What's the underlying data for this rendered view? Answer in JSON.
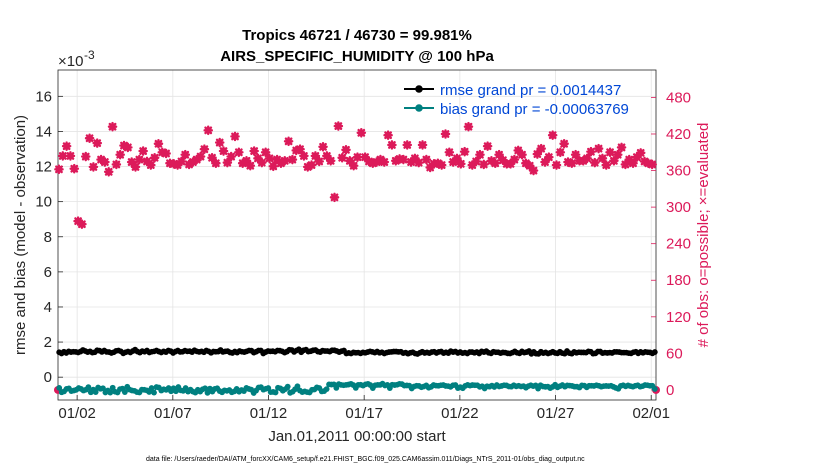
{
  "colors": {
    "rmse": "#000000",
    "bias": "#008080",
    "obs": "#dc1a5a",
    "legend_text": "#0047d6",
    "grid": "#e4e4e4"
  },
  "footer": "data file: /Users/raeder/DAI/ATM_forcXX/CAM6_setup/f.e21.FHIST_BGC.f09_025.CAM6assim.011/Diags_NTrS_2011-01/obs_diag_output.nc",
  "chart_data": {
    "type": "line",
    "title": [
      "Tropics 46721 / 46730 = 99.981%",
      "AIRS_SPECIFIC_HUMIDITY @ 100 hPa"
    ],
    "xlabel": "Jan.01,2011 00:00:00 start",
    "ylabel_left": "rmse and bias (model - observation)",
    "ylabel_right": "# of obs: o=possible; ×=evaluated",
    "exponent_label": "×10",
    "exponent_power": "-3",
    "x_range_days": [
      0,
      31.25
    ],
    "y_left_range": [
      -1.3,
      17.5
    ],
    "y_left_ticks": [
      0,
      2,
      4,
      6,
      8,
      10,
      12,
      14,
      16
    ],
    "y_left_tick_labels": [
      "0",
      "2",
      "4",
      "6",
      "8",
      "10",
      "12",
      "14",
      "16"
    ],
    "y_right_range": [
      -16.5,
      525
    ],
    "y_right_ticks": [
      0,
      60,
      120,
      180,
      240,
      300,
      360,
      420,
      480
    ],
    "y_right_tick_labels": [
      "0",
      "60",
      "120",
      "180",
      "240",
      "300",
      "360",
      "420",
      "480"
    ],
    "x_ticks_days": [
      1,
      6,
      11,
      16,
      21,
      26,
      31
    ],
    "x_tick_labels": [
      "01/02",
      "01/07",
      "01/12",
      "01/17",
      "01/22",
      "01/27",
      "02/01"
    ],
    "legend": [
      "rmse grand pr = 0.0014437",
      "bias grand pr = -0.00063769"
    ],
    "rmse_e3": [
      1.42,
      1.35,
      1.45,
      1.38,
      1.47,
      1.43,
      1.45,
      1.44,
      1.41,
      1.46,
      1.55,
      1.49,
      1.43,
      1.47,
      1.4,
      1.42,
      1.53,
      1.51,
      1.44,
      1.52,
      1.44,
      1.43,
      1.38,
      1.42,
      1.5,
      1.52,
      1.47,
      1.36,
      1.42,
      1.46,
      1.41,
      1.49,
      1.57,
      1.46,
      1.4,
      1.48,
      1.45,
      1.52,
      1.41,
      1.45,
      1.47,
      1.52,
      1.46,
      1.41,
      1.47,
      1.43,
      1.52,
      1.48,
      1.38,
      1.46,
      1.52,
      1.44,
      1.45,
      1.51,
      1.47,
      1.48,
      1.43,
      1.53,
      1.47,
      1.44,
      1.47,
      1.42,
      1.52,
      1.47,
      1.39,
      1.46,
      1.45,
      1.46,
      1.55,
      1.44,
      1.47,
      1.48,
      1.41,
      1.38,
      1.46,
      1.4,
      1.49,
      1.45,
      1.43,
      1.47,
      1.52,
      1.51,
      1.4,
      1.45,
      1.52,
      1.52,
      1.35,
      1.43,
      1.49,
      1.47,
      1.48,
      1.45,
      1.52,
      1.51,
      1.47,
      1.4,
      1.46,
      1.56,
      1.55,
      1.44,
      1.52,
      1.59,
      1.42,
      1.53,
      1.57,
      1.46,
      1.48,
      1.53,
      1.55,
      1.46,
      1.43,
      1.51,
      1.49,
      1.49,
      1.46,
      1.53,
      1.53,
      1.49,
      1.43,
      1.48,
      1.52,
      1.35,
      1.38,
      1.35,
      1.41,
      1.39,
      1.4,
      1.36,
      1.41,
      1.39,
      1.43,
      1.47,
      1.44,
      1.4,
      1.46,
      1.39,
      1.42,
      1.35,
      1.4,
      1.43,
      1.44,
      1.46,
      1.46,
      1.44,
      1.45,
      1.37,
      1.4,
      1.34,
      1.39,
      1.42,
      1.35,
      1.32,
      1.39,
      1.45,
      1.38,
      1.41,
      1.37,
      1.43,
      1.45,
      1.38,
      1.44,
      1.46,
      1.37,
      1.42,
      1.37,
      1.48,
      1.43,
      1.46,
      1.38,
      1.43,
      1.37,
      1.4,
      1.35,
      1.43,
      1.43,
      1.39,
      1.43,
      1.35,
      1.47,
      1.43,
      1.48,
      1.39,
      1.36,
      1.45,
      1.42,
      1.42,
      1.37,
      1.41,
      1.4,
      1.36,
      1.35,
      1.4,
      1.47,
      1.39,
      1.36,
      1.47,
      1.4,
      1.43,
      1.49,
      1.33,
      1.44,
      1.34,
      1.33,
      1.45,
      1.37,
      1.41,
      1.35,
      1.39,
      1.45,
      1.38,
      1.36,
      1.45,
      1.37,
      1.34,
      1.49,
      1.37,
      1.34,
      1.44,
      1.39,
      1.42,
      1.41,
      1.41,
      1.4,
      1.47,
      1.45,
      1.34,
      1.36,
      1.46,
      1.46,
      1.37,
      1.4,
      1.38,
      1.4,
      1.38,
      1.44,
      1.44,
      1.43,
      1.4,
      1.4,
      1.4,
      1.37,
      1.36,
      1.42,
      1.45,
      1.36,
      1.44,
      1.39,
      1.44,
      1.42,
      1.41,
      1.36,
      1.43
    ],
    "bias_e3": [
      -0.61,
      -0.86,
      -0.81,
      -0.67,
      -0.64,
      -0.79,
      -0.76,
      -0.72,
      -0.62,
      -0.67,
      -0.76,
      -0.71,
      -0.57,
      -0.86,
      -0.71,
      -0.85,
      -0.59,
      -0.66,
      -0.63,
      -0.87,
      -0.76,
      -0.88,
      -0.6,
      -0.83,
      -0.87,
      -0.68,
      -0.65,
      -0.85,
      -0.55,
      -0.71,
      -0.76,
      -0.78,
      -0.85,
      -0.87,
      -0.71,
      -0.72,
      -0.75,
      -0.84,
      -0.62,
      -0.88,
      -0.56,
      -0.59,
      -0.76,
      -0.69,
      -0.72,
      -0.62,
      -0.8,
      -0.63,
      -0.8,
      -0.56,
      -0.75,
      -0.78,
      -0.62,
      -0.82,
      -0.71,
      -0.82,
      -0.88,
      -0.72,
      -0.82,
      -0.69,
      -0.63,
      -0.89,
      -0.65,
      -0.82,
      -0.67,
      -0.63,
      -0.79,
      -0.86,
      -0.75,
      -0.78,
      -0.73,
      -0.86,
      -0.81,
      -0.67,
      -0.83,
      -0.73,
      -0.79,
      -0.61,
      -0.67,
      -0.71,
      -0.9,
      -0.76,
      -0.59,
      -0.57,
      -0.71,
      -0.66,
      -0.62,
      -0.85,
      -0.84,
      -0.87,
      -0.6,
      -0.64,
      -0.77,
      -0.68,
      -0.54,
      -0.89,
      -0.83,
      -0.69,
      -0.52,
      -0.76,
      -0.85,
      -0.81,
      -0.85,
      -0.87,
      -0.72,
      -0.7,
      -0.58,
      -0.62,
      -0.81,
      -0.79,
      -0.68,
      -0.41,
      -0.42,
      -0.41,
      -0.61,
      -0.4,
      -0.44,
      -0.46,
      -0.44,
      -0.42,
      -0.38,
      -0.45,
      -0.61,
      -0.44,
      -0.43,
      -0.48,
      -0.41,
      -0.38,
      -0.45,
      -0.62,
      -0.46,
      -0.44,
      -0.44,
      -0.37,
      -0.47,
      -0.44,
      -0.62,
      -0.43,
      -0.45,
      -0.43,
      -0.38,
      -0.4,
      -0.48,
      -0.47,
      -0.48,
      -0.64,
      -0.53,
      -0.49,
      -0.5,
      -0.57,
      -0.53,
      -0.47,
      -0.6,
      -0.55,
      -0.45,
      -0.48,
      -0.49,
      -0.46,
      -0.45,
      -0.5,
      -0.51,
      -0.55,
      -0.46,
      -0.45,
      -0.62,
      -0.57,
      -0.63,
      -0.5,
      -0.44,
      -0.48,
      -0.45,
      -0.46,
      -0.46,
      -0.55,
      -0.52,
      -0.64,
      -0.52,
      -0.54,
      -0.48,
      -0.56,
      -0.45,
      -0.53,
      -0.5,
      -0.46,
      -0.47,
      -0.53,
      -0.54,
      -0.46,
      -0.52,
      -0.49,
      -0.53,
      -0.51,
      -0.6,
      -0.51,
      -0.46,
      -0.51,
      -0.47,
      -0.65,
      -0.46,
      -0.53,
      -0.55,
      -0.54,
      -0.62,
      -0.55,
      -0.43,
      -0.58,
      -0.51,
      -0.45,
      -0.54,
      -0.47,
      -0.48,
      -0.5,
      -0.54,
      -0.54,
      -0.59,
      -0.47,
      -0.48,
      -0.58,
      -0.49,
      -0.49,
      -0.5,
      -0.46,
      -0.49,
      -0.54,
      -0.51,
      -0.5,
      -0.51,
      -0.49,
      -0.55,
      -0.61,
      -0.66,
      -0.5,
      -0.46,
      -0.52,
      -0.47,
      -0.51,
      -0.54,
      -0.49,
      -0.46,
      -0.54,
      -0.51,
      -0.45,
      -0.46,
      -0.49,
      -0.49,
      -0.67
    ],
    "obs_possible_ends": [
      0,
      0
    ],
    "obs_evaluated": [
      {
        "day": 0.05,
        "n": 362
      },
      {
        "day": 0.25,
        "n": 384
      },
      {
        "day": 0.45,
        "n": 400
      },
      {
        "day": 0.65,
        "n": 384
      },
      {
        "day": 0.85,
        "n": 363
      },
      {
        "day": 1.05,
        "n": 277
      },
      {
        "day": 1.25,
        "n": 272
      },
      {
        "day": 1.45,
        "n": 383
      },
      {
        "day": 1.65,
        "n": 413
      },
      {
        "day": 1.85,
        "n": 366
      },
      {
        "day": 2.05,
        "n": 405
      },
      {
        "day": 2.25,
        "n": 378
      },
      {
        "day": 2.45,
        "n": 374
      },
      {
        "day": 2.65,
        "n": 358
      },
      {
        "day": 2.85,
        "n": 432
      },
      {
        "day": 3.05,
        "n": 370
      },
      {
        "day": 3.25,
        "n": 386
      },
      {
        "day": 3.45,
        "n": 401
      },
      {
        "day": 3.65,
        "n": 398
      },
      {
        "day": 3.85,
        "n": 374
      },
      {
        "day": 4.05,
        "n": 366
      },
      {
        "day": 4.25,
        "n": 378
      },
      {
        "day": 4.45,
        "n": 392
      },
      {
        "day": 4.65,
        "n": 375
      },
      {
        "day": 4.85,
        "n": 369
      },
      {
        "day": 5.05,
        "n": 381
      },
      {
        "day": 5.25,
        "n": 404
      },
      {
        "day": 5.45,
        "n": 390
      },
      {
        "day": 5.65,
        "n": 388
      },
      {
        "day": 5.85,
        "n": 372
      },
      {
        "day": 6.05,
        "n": 371
      },
      {
        "day": 6.25,
        "n": 369
      },
      {
        "day": 6.45,
        "n": 375
      },
      {
        "day": 6.65,
        "n": 386
      },
      {
        "day": 6.85,
        "n": 370
      },
      {
        "day": 7.05,
        "n": 374
      },
      {
        "day": 7.25,
        "n": 378
      },
      {
        "day": 7.45,
        "n": 383
      },
      {
        "day": 7.65,
        "n": 395
      },
      {
        "day": 7.85,
        "n": 426
      },
      {
        "day": 8.05,
        "n": 381
      },
      {
        "day": 8.25,
        "n": 372
      },
      {
        "day": 8.45,
        "n": 406
      },
      {
        "day": 8.65,
        "n": 392
      },
      {
        "day": 8.85,
        "n": 373
      },
      {
        "day": 9.05,
        "n": 383
      },
      {
        "day": 9.25,
        "n": 416
      },
      {
        "day": 9.45,
        "n": 390
      },
      {
        "day": 9.65,
        "n": 372
      },
      {
        "day": 9.85,
        "n": 376
      },
      {
        "day": 10.05,
        "n": 368
      },
      {
        "day": 10.25,
        "n": 392
      },
      {
        "day": 10.45,
        "n": 380
      },
      {
        "day": 10.65,
        "n": 373
      },
      {
        "day": 10.85,
        "n": 390
      },
      {
        "day": 11.05,
        "n": 380
      },
      {
        "day": 11.25,
        "n": 367
      },
      {
        "day": 11.45,
        "n": 378
      },
      {
        "day": 11.65,
        "n": 372
      },
      {
        "day": 11.85,
        "n": 376
      },
      {
        "day": 12.05,
        "n": 408
      },
      {
        "day": 12.25,
        "n": 378
      },
      {
        "day": 12.45,
        "n": 393
      },
      {
        "day": 12.65,
        "n": 395
      },
      {
        "day": 12.85,
        "n": 384
      },
      {
        "day": 13.05,
        "n": 366
      },
      {
        "day": 13.25,
        "n": 369
      },
      {
        "day": 13.45,
        "n": 384
      },
      {
        "day": 13.65,
        "n": 375
      },
      {
        "day": 13.85,
        "n": 399
      },
      {
        "day": 14.05,
        "n": 384
      },
      {
        "day": 14.25,
        "n": 376
      },
      {
        "day": 14.45,
        "n": 316
      },
      {
        "day": 14.65,
        "n": 433
      },
      {
        "day": 14.85,
        "n": 381
      },
      {
        "day": 15.05,
        "n": 394
      },
      {
        "day": 15.25,
        "n": 376
      },
      {
        "day": 15.45,
        "n": 368
      },
      {
        "day": 15.65,
        "n": 382
      },
      {
        "day": 15.85,
        "n": 422
      },
      {
        "day": 16.05,
        "n": 382
      },
      {
        "day": 16.25,
        "n": 375
      },
      {
        "day": 16.45,
        "n": 372
      },
      {
        "day": 16.65,
        "n": 374
      },
      {
        "day": 16.85,
        "n": 378
      },
      {
        "day": 17.05,
        "n": 374
      },
      {
        "day": 17.25,
        "n": 418
      },
      {
        "day": 17.45,
        "n": 402
      },
      {
        "day": 17.65,
        "n": 376
      },
      {
        "day": 17.85,
        "n": 379
      },
      {
        "day": 18.05,
        "n": 378
      },
      {
        "day": 18.25,
        "n": 402
      },
      {
        "day": 18.45,
        "n": 374
      },
      {
        "day": 18.65,
        "n": 380
      },
      {
        "day": 18.85,
        "n": 373
      },
      {
        "day": 19.05,
        "n": 402
      },
      {
        "day": 19.25,
        "n": 378
      },
      {
        "day": 19.45,
        "n": 365
      },
      {
        "day": 19.65,
        "n": 371
      },
      {
        "day": 19.85,
        "n": 372
      },
      {
        "day": 20.05,
        "n": 369
      },
      {
        "day": 20.25,
        "n": 420
      },
      {
        "day": 20.45,
        "n": 390
      },
      {
        "day": 20.65,
        "n": 374
      },
      {
        "day": 20.85,
        "n": 380
      },
      {
        "day": 21.05,
        "n": 371
      },
      {
        "day": 21.25,
        "n": 391
      },
      {
        "day": 21.45,
        "n": 432
      },
      {
        "day": 21.65,
        "n": 369
      },
      {
        "day": 21.85,
        "n": 375
      },
      {
        "day": 22.05,
        "n": 386
      },
      {
        "day": 22.25,
        "n": 370
      },
      {
        "day": 22.45,
        "n": 400
      },
      {
        "day": 22.65,
        "n": 376
      },
      {
        "day": 22.85,
        "n": 372
      },
      {
        "day": 23.05,
        "n": 386
      },
      {
        "day": 23.25,
        "n": 377
      },
      {
        "day": 23.45,
        "n": 371
      },
      {
        "day": 23.65,
        "n": 371
      },
      {
        "day": 23.85,
        "n": 378
      },
      {
        "day": 24.05,
        "n": 393
      },
      {
        "day": 24.25,
        "n": 386
      },
      {
        "day": 24.45,
        "n": 372
      },
      {
        "day": 24.65,
        "n": 368
      },
      {
        "day": 24.85,
        "n": 360
      },
      {
        "day": 25.05,
        "n": 387
      },
      {
        "day": 25.25,
        "n": 396
      },
      {
        "day": 25.45,
        "n": 374
      },
      {
        "day": 25.65,
        "n": 382
      },
      {
        "day": 25.85,
        "n": 418
      },
      {
        "day": 26.05,
        "n": 369
      },
      {
        "day": 26.25,
        "n": 390
      },
      {
        "day": 26.45,
        "n": 404
      },
      {
        "day": 26.65,
        "n": 374
      },
      {
        "day": 26.85,
        "n": 372
      },
      {
        "day": 27.05,
        "n": 386
      },
      {
        "day": 27.25,
        "n": 376
      },
      {
        "day": 27.45,
        "n": 376
      },
      {
        "day": 27.65,
        "n": 380
      },
      {
        "day": 27.85,
        "n": 391
      },
      {
        "day": 28.05,
        "n": 373
      },
      {
        "day": 28.25,
        "n": 396
      },
      {
        "day": 28.45,
        "n": 380
      },
      {
        "day": 28.65,
        "n": 369
      },
      {
        "day": 28.85,
        "n": 390
      },
      {
        "day": 29.05,
        "n": 376
      },
      {
        "day": 29.25,
        "n": 386
      },
      {
        "day": 29.45,
        "n": 398
      },
      {
        "day": 29.65,
        "n": 370
      },
      {
        "day": 29.85,
        "n": 378
      },
      {
        "day": 30.05,
        "n": 372
      },
      {
        "day": 30.25,
        "n": 382
      },
      {
        "day": 30.45,
        "n": 389
      },
      {
        "day": 30.65,
        "n": 375
      },
      {
        "day": 30.85,
        "n": 372
      },
      {
        "day": 31.05,
        "n": 370
      }
    ]
  }
}
